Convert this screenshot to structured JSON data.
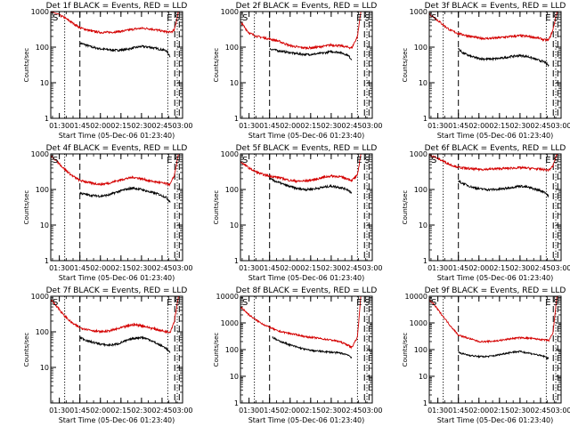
{
  "chart_data": [
    {
      "type": "line",
      "title": "Det 1f BLACK = Events, RED = LLD",
      "xlabel": "Start Time (05-Dec-06 01:23:40)",
      "ylabel": "Counts/sec",
      "x_ticks": [
        "01:30",
        "01:45",
        "02:00",
        "02:15",
        "02:30",
        "02:45",
        "03:00"
      ],
      "y_ticks": [
        "1",
        "10",
        "100",
        "1000"
      ],
      "ylim": [
        1,
        1000
      ],
      "yscale": "log",
      "markers": [
        "S",
        "E",
        "S"
      ],
      "colors": {
        "events": "#000000",
        "lld": "#d40000"
      },
      "series": [
        {
          "name": "BLACK = Events",
          "x": [
            1.75,
            1.8,
            1.9,
            2.0,
            2.1,
            2.2,
            2.3,
            2.4,
            2.5,
            2.6,
            2.7,
            2.8,
            2.85
          ],
          "y": [
            130,
            120,
            100,
            90,
            85,
            82,
            85,
            95,
            105,
            100,
            90,
            80,
            55
          ]
        },
        {
          "name": "RED = LLD",
          "x": [
            1.35,
            1.45,
            1.55,
            1.65,
            1.75,
            1.9,
            2.0,
            2.1,
            2.2,
            2.3,
            2.4,
            2.5,
            2.6,
            2.7,
            2.8,
            2.85,
            2.9,
            2.95
          ],
          "y": [
            1000,
            900,
            700,
            500,
            350,
            280,
            260,
            260,
            270,
            290,
            320,
            340,
            330,
            300,
            270,
            260,
            300,
            1000
          ]
        }
      ]
    },
    {
      "type": "line",
      "title": "Det 2f BLACK = Events, RED = LLD",
      "xlabel": "Start Time (05-Dec-06 01:23:40)",
      "ylabel": "Counts/sec",
      "x_ticks": [
        "01:30",
        "01:45",
        "02:00",
        "02:15",
        "02:30",
        "02:45",
        "03:00"
      ],
      "y_ticks": [
        "1",
        "10",
        "100",
        "1000"
      ],
      "ylim": [
        1,
        1000
      ],
      "yscale": "log",
      "markers": [
        "S",
        "E",
        "S"
      ],
      "colors": {
        "events": "#000000",
        "lld": "#d40000"
      },
      "series": [
        {
          "name": "BLACK = Events",
          "x": [
            1.75,
            1.85,
            2.0,
            2.1,
            2.2,
            2.3,
            2.4,
            2.5,
            2.6,
            2.7,
            2.75
          ],
          "y": [
            90,
            80,
            70,
            65,
            62,
            64,
            68,
            75,
            72,
            60,
            45
          ]
        },
        {
          "name": "RED = LLD",
          "x": [
            1.3,
            1.4,
            1.5,
            1.6,
            1.7,
            1.85,
            2.0,
            2.1,
            2.2,
            2.3,
            2.4,
            2.5,
            2.6,
            2.7,
            2.75,
            2.82,
            2.86
          ],
          "y": [
            1000,
            500,
            250,
            200,
            180,
            150,
            110,
            100,
            95,
            98,
            105,
            115,
            110,
            100,
            95,
            200,
            1000
          ]
        }
      ]
    },
    {
      "type": "line",
      "title": "Det 3f BLACK = Events, RED = LLD",
      "xlabel": "Start Time (05-Dec-06 01:23:40)",
      "ylabel": "Counts/sec",
      "x_ticks": [
        "01:30",
        "01:45",
        "02:00",
        "02:15",
        "02:30",
        "02:45",
        "03:00"
      ],
      "y_ticks": [
        "1",
        "10",
        "100",
        "1000"
      ],
      "ylim": [
        1,
        1000
      ],
      "yscale": "log",
      "markers": [
        "S",
        "E",
        "S"
      ],
      "colors": {
        "events": "#000000",
        "lld": "#d40000"
      },
      "series": [
        {
          "name": "BLACK = Events",
          "x": [
            1.75,
            1.8,
            1.9,
            2.0,
            2.1,
            2.2,
            2.3,
            2.4,
            2.5,
            2.6,
            2.7,
            2.8,
            2.85
          ],
          "y": [
            90,
            70,
            55,
            48,
            46,
            47,
            50,
            55,
            58,
            54,
            45,
            38,
            30
          ]
        },
        {
          "name": "RED = LLD",
          "x": [
            1.35,
            1.45,
            1.55,
            1.65,
            1.75,
            1.9,
            2.0,
            2.1,
            2.2,
            2.3,
            2.4,
            2.5,
            2.6,
            2.7,
            2.8,
            2.85,
            2.9,
            2.95
          ],
          "y": [
            1000,
            700,
            450,
            300,
            240,
            200,
            180,
            175,
            180,
            190,
            200,
            210,
            200,
            185,
            160,
            160,
            300,
            1000
          ]
        }
      ]
    },
    {
      "type": "line",
      "title": "Det 4f BLACK = Events, RED = LLD",
      "xlabel": "Start Time (05-Dec-06 01:23:40)",
      "ylabel": "Counts/sec",
      "x_ticks": [
        "01:30",
        "01:45",
        "02:00",
        "02:15",
        "02:30",
        "02:45",
        "03:00"
      ],
      "y_ticks": [
        "1",
        "10",
        "100",
        "1000"
      ],
      "ylim": [
        1,
        1000
      ],
      "yscale": "log",
      "markers": [
        "S",
        "E",
        "S"
      ],
      "colors": {
        "events": "#000000",
        "lld": "#d40000"
      },
      "series": [
        {
          "name": "BLACK = Events",
          "x": [
            1.75,
            1.85,
            2.0,
            2.1,
            2.2,
            2.3,
            2.4,
            2.5,
            2.6,
            2.7,
            2.8,
            2.85
          ],
          "y": [
            80,
            70,
            65,
            70,
            85,
            100,
            110,
            100,
            85,
            75,
            60,
            45
          ]
        },
        {
          "name": "RED = LLD",
          "x": [
            1.35,
            1.45,
            1.55,
            1.65,
            1.75,
            1.9,
            2.0,
            2.1,
            2.2,
            2.3,
            2.4,
            2.5,
            2.6,
            2.7,
            2.8,
            2.85,
            2.9,
            2.95
          ],
          "y": [
            1000,
            700,
            400,
            250,
            180,
            150,
            140,
            150,
            175,
            200,
            220,
            200,
            175,
            160,
            145,
            140,
            250,
            1000
          ]
        }
      ]
    },
    {
      "type": "line",
      "title": "Det 5f BLACK = Events, RED = LLD",
      "xlabel": "Start Time (05-Dec-06 01:23:40)",
      "ylabel": "Counts/sec",
      "x_ticks": [
        "01:30",
        "01:45",
        "02:00",
        "02:15",
        "02:30",
        "02:45",
        "03:00"
      ],
      "y_ticks": [
        "1",
        "10",
        "100",
        "1000"
      ],
      "ylim": [
        1,
        1000
      ],
      "yscale": "log",
      "markers": [
        "S",
        "E",
        "S"
      ],
      "colors": {
        "events": "#000000",
        "lld": "#d40000"
      },
      "series": [
        {
          "name": "BLACK = Events",
          "x": [
            1.75,
            1.85,
            2.0,
            2.1,
            2.2,
            2.3,
            2.4,
            2.5,
            2.6,
            2.7,
            2.75
          ],
          "y": [
            200,
            160,
            120,
            105,
            100,
            105,
            115,
            125,
            115,
            100,
            80
          ]
        },
        {
          "name": "RED = LLD",
          "x": [
            1.3,
            1.4,
            1.5,
            1.6,
            1.7,
            1.85,
            2.0,
            2.1,
            2.2,
            2.3,
            2.4,
            2.5,
            2.6,
            2.7,
            2.75,
            2.82,
            2.86
          ],
          "y": [
            1000,
            600,
            400,
            300,
            250,
            220,
            180,
            170,
            175,
            190,
            220,
            240,
            230,
            200,
            180,
            250,
            1000
          ]
        }
      ]
    },
    {
      "type": "line",
      "title": "Det 6f BLACK = Events, RED = LLD",
      "xlabel": "Start Time (05-Dec-06 01:23:40)",
      "ylabel": "Counts/sec",
      "x_ticks": [
        "01:30",
        "01:45",
        "02:00",
        "02:15",
        "02:30",
        "02:45",
        "03:00"
      ],
      "y_ticks": [
        "1",
        "10",
        "100",
        "1000"
      ],
      "ylim": [
        1,
        1000
      ],
      "yscale": "log",
      "markers": [
        "S",
        "E",
        "S"
      ],
      "colors": {
        "events": "#000000",
        "lld": "#d40000"
      },
      "series": [
        {
          "name": "BLACK = Events",
          "x": [
            1.75,
            1.8,
            1.9,
            2.0,
            2.1,
            2.2,
            2.3,
            2.4,
            2.5,
            2.6,
            2.7,
            2.8,
            2.85
          ],
          "y": [
            170,
            150,
            120,
            105,
            100,
            100,
            105,
            115,
            125,
            115,
            100,
            85,
            65
          ]
        },
        {
          "name": "RED = LLD",
          "x": [
            1.35,
            1.45,
            1.55,
            1.65,
            1.75,
            1.9,
            2.0,
            2.1,
            2.2,
            2.3,
            2.4,
            2.5,
            2.6,
            2.7,
            2.8,
            2.85,
            2.9,
            2.95
          ],
          "y": [
            1000,
            850,
            650,
            500,
            420,
            380,
            370,
            370,
            380,
            390,
            400,
            410,
            400,
            380,
            360,
            350,
            450,
            1000
          ]
        }
      ]
    },
    {
      "type": "line",
      "title": "Det 7f BLACK = Events, RED = LLD",
      "xlabel": "Start Time (05-Dec-06 01:23:40)",
      "ylabel": "Counts/sec",
      "x_ticks": [
        "01:30",
        "01:45",
        "02:00",
        "02:15",
        "02:30",
        "02:45",
        "03:00"
      ],
      "y_ticks": [
        "10",
        "100",
        "1000"
      ],
      "ylim": [
        1,
        1000
      ],
      "yscale": "log",
      "markers": [
        "S",
        "E",
        "S"
      ],
      "colors": {
        "events": "#000000",
        "lld": "#d40000"
      },
      "series": [
        {
          "name": "BLACK = Events",
          "x": [
            1.75,
            1.85,
            2.0,
            2.1,
            2.2,
            2.3,
            2.4,
            2.5,
            2.6,
            2.7,
            2.8,
            2.85
          ],
          "y": [
            70,
            55,
            45,
            42,
            45,
            55,
            65,
            70,
            60,
            45,
            35,
            25
          ]
        },
        {
          "name": "RED = LLD",
          "x": [
            1.35,
            1.45,
            1.55,
            1.65,
            1.75,
            1.9,
            2.0,
            2.1,
            2.2,
            2.3,
            2.4,
            2.5,
            2.6,
            2.7,
            2.8,
            2.85,
            2.9,
            2.95
          ],
          "y": [
            1000,
            600,
            300,
            180,
            130,
            110,
            100,
            105,
            120,
            140,
            160,
            150,
            130,
            115,
            100,
            100,
            200,
            1000
          ]
        }
      ]
    },
    {
      "type": "line",
      "title": "Det 8f BLACK = Events, RED = LLD",
      "xlabel": "Start Time (05-Dec-06 01:23:40)",
      "ylabel": "Counts/sec",
      "x_ticks": [
        "01:30",
        "01:45",
        "02:00",
        "02:15",
        "02:30",
        "02:45",
        "03:00"
      ],
      "y_ticks": [
        "1",
        "10",
        "100",
        "1000",
        "10000"
      ],
      "ylim": [
        1,
        10000
      ],
      "yscale": "log",
      "markers": [
        "S",
        "E",
        "S"
      ],
      "colors": {
        "events": "#000000",
        "lld": "#d40000"
      },
      "series": [
        {
          "name": "BLACK = Events",
          "x": [
            1.78,
            1.85,
            2.0,
            2.1,
            2.2,
            2.3,
            2.4,
            2.5,
            2.6,
            2.7,
            2.75
          ],
          "y": [
            300,
            220,
            150,
            120,
            100,
            90,
            85,
            80,
            75,
            65,
            50
          ]
        },
        {
          "name": "RED = LLD",
          "x": [
            1.3,
            1.4,
            1.5,
            1.6,
            1.7,
            1.85,
            2.0,
            2.1,
            2.2,
            2.3,
            2.4,
            2.5,
            2.6,
            2.7,
            2.75,
            2.82,
            2.86
          ],
          "y": [
            10000,
            4000,
            2000,
            1200,
            800,
            500,
            400,
            350,
            300,
            280,
            250,
            230,
            200,
            150,
            120,
            300,
            10000
          ]
        }
      ]
    },
    {
      "type": "line",
      "title": "Det 9f BLACK = Events, RED = LLD",
      "xlabel": "Start Time (05-Dec-06 01:23:40)",
      "ylabel": "Counts/sec",
      "x_ticks": [
        "01:30",
        "01:45",
        "02:00",
        "02:15",
        "02:30",
        "02:45",
        "03:00"
      ],
      "y_ticks": [
        "1",
        "10",
        "100",
        "1000",
        "10000"
      ],
      "ylim": [
        1,
        10000
      ],
      "yscale": "log",
      "markers": [
        "S",
        "E",
        "S"
      ],
      "colors": {
        "events": "#000000",
        "lld": "#d40000"
      },
      "series": [
        {
          "name": "BLACK = Events",
          "x": [
            1.75,
            1.8,
            1.9,
            2.0,
            2.1,
            2.2,
            2.3,
            2.4,
            2.5,
            2.6,
            2.7,
            2.8,
            2.85
          ],
          "y": [
            80,
            70,
            60,
            55,
            55,
            60,
            70,
            80,
            85,
            75,
            65,
            55,
            45
          ]
        },
        {
          "name": "RED = LLD",
          "x": [
            1.35,
            1.45,
            1.55,
            1.65,
            1.75,
            1.9,
            2.0,
            2.1,
            2.2,
            2.3,
            2.4,
            2.5,
            2.6,
            2.7,
            2.8,
            2.85,
            2.9,
            2.95
          ],
          "y": [
            10000,
            5000,
            2000,
            800,
            350,
            250,
            200,
            200,
            210,
            230,
            260,
            280,
            270,
            250,
            230,
            220,
            400,
            10000
          ]
        }
      ]
    }
  ]
}
